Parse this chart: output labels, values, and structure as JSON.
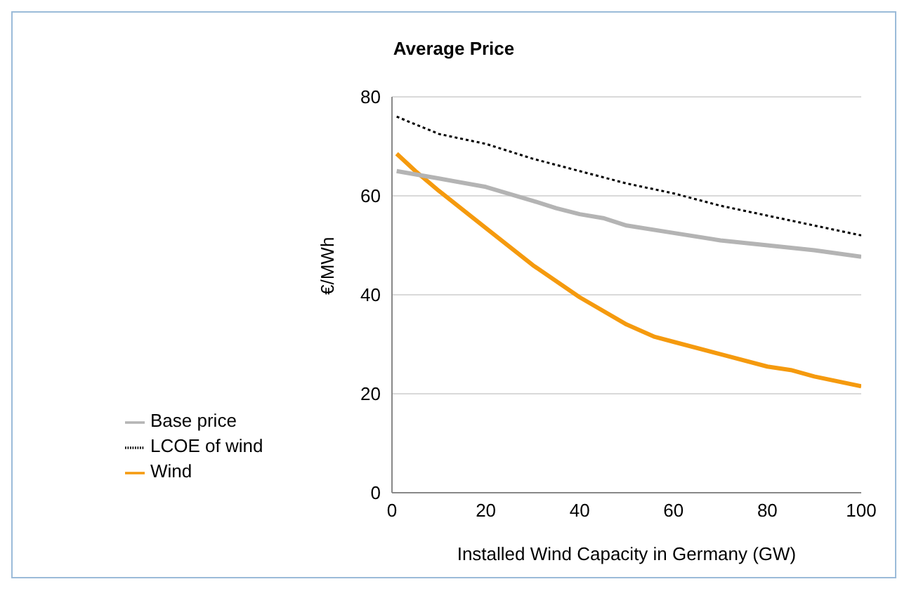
{
  "chart_data": {
    "type": "line",
    "title": "Average Price",
    "xlabel": "Installed Wind Capacity in Germany (GW)",
    "ylabel": "€/MWh",
    "xlim": [
      0,
      100
    ],
    "xticks": [
      0,
      20,
      40,
      60,
      80,
      100
    ],
    "ylim": [
      0,
      80
    ],
    "yticks": [
      0,
      20,
      40,
      60,
      80
    ],
    "grid": "y",
    "legend": "bottom left",
    "marker": "none",
    "series": [
      {
        "name": "Wind",
        "color": "#f59a0e",
        "line_style": "solid",
        "x": [
          1,
          5,
          10,
          20,
          30,
          40,
          50,
          56,
          60,
          70,
          80,
          85,
          90,
          100
        ],
        "values": [
          68.5,
          65,
          61,
          53.5,
          46,
          39.5,
          34,
          31.5,
          30.5,
          28,
          25.5,
          24.8,
          23.5,
          21.5
        ]
      },
      {
        "name": "Base price",
        "color": "#b4b4b4",
        "line_style": "solid",
        "x": [
          1,
          10,
          20,
          30,
          35,
          40,
          45,
          50,
          60,
          70,
          80,
          90,
          100
        ],
        "values": [
          65,
          63.5,
          61.8,
          59,
          57.5,
          56.3,
          55.5,
          54,
          52.5,
          51,
          50,
          49,
          47.7
        ]
      },
      {
        "name": "LCOE of wind",
        "color": "#000000",
        "line_style": "dotted",
        "x": [
          1,
          10,
          20,
          30,
          40,
          50,
          60,
          70,
          80,
          90,
          100
        ],
        "values": [
          76,
          72.5,
          70.5,
          67.5,
          65,
          62.5,
          60.5,
          58,
          56,
          54,
          52
        ]
      }
    ]
  }
}
